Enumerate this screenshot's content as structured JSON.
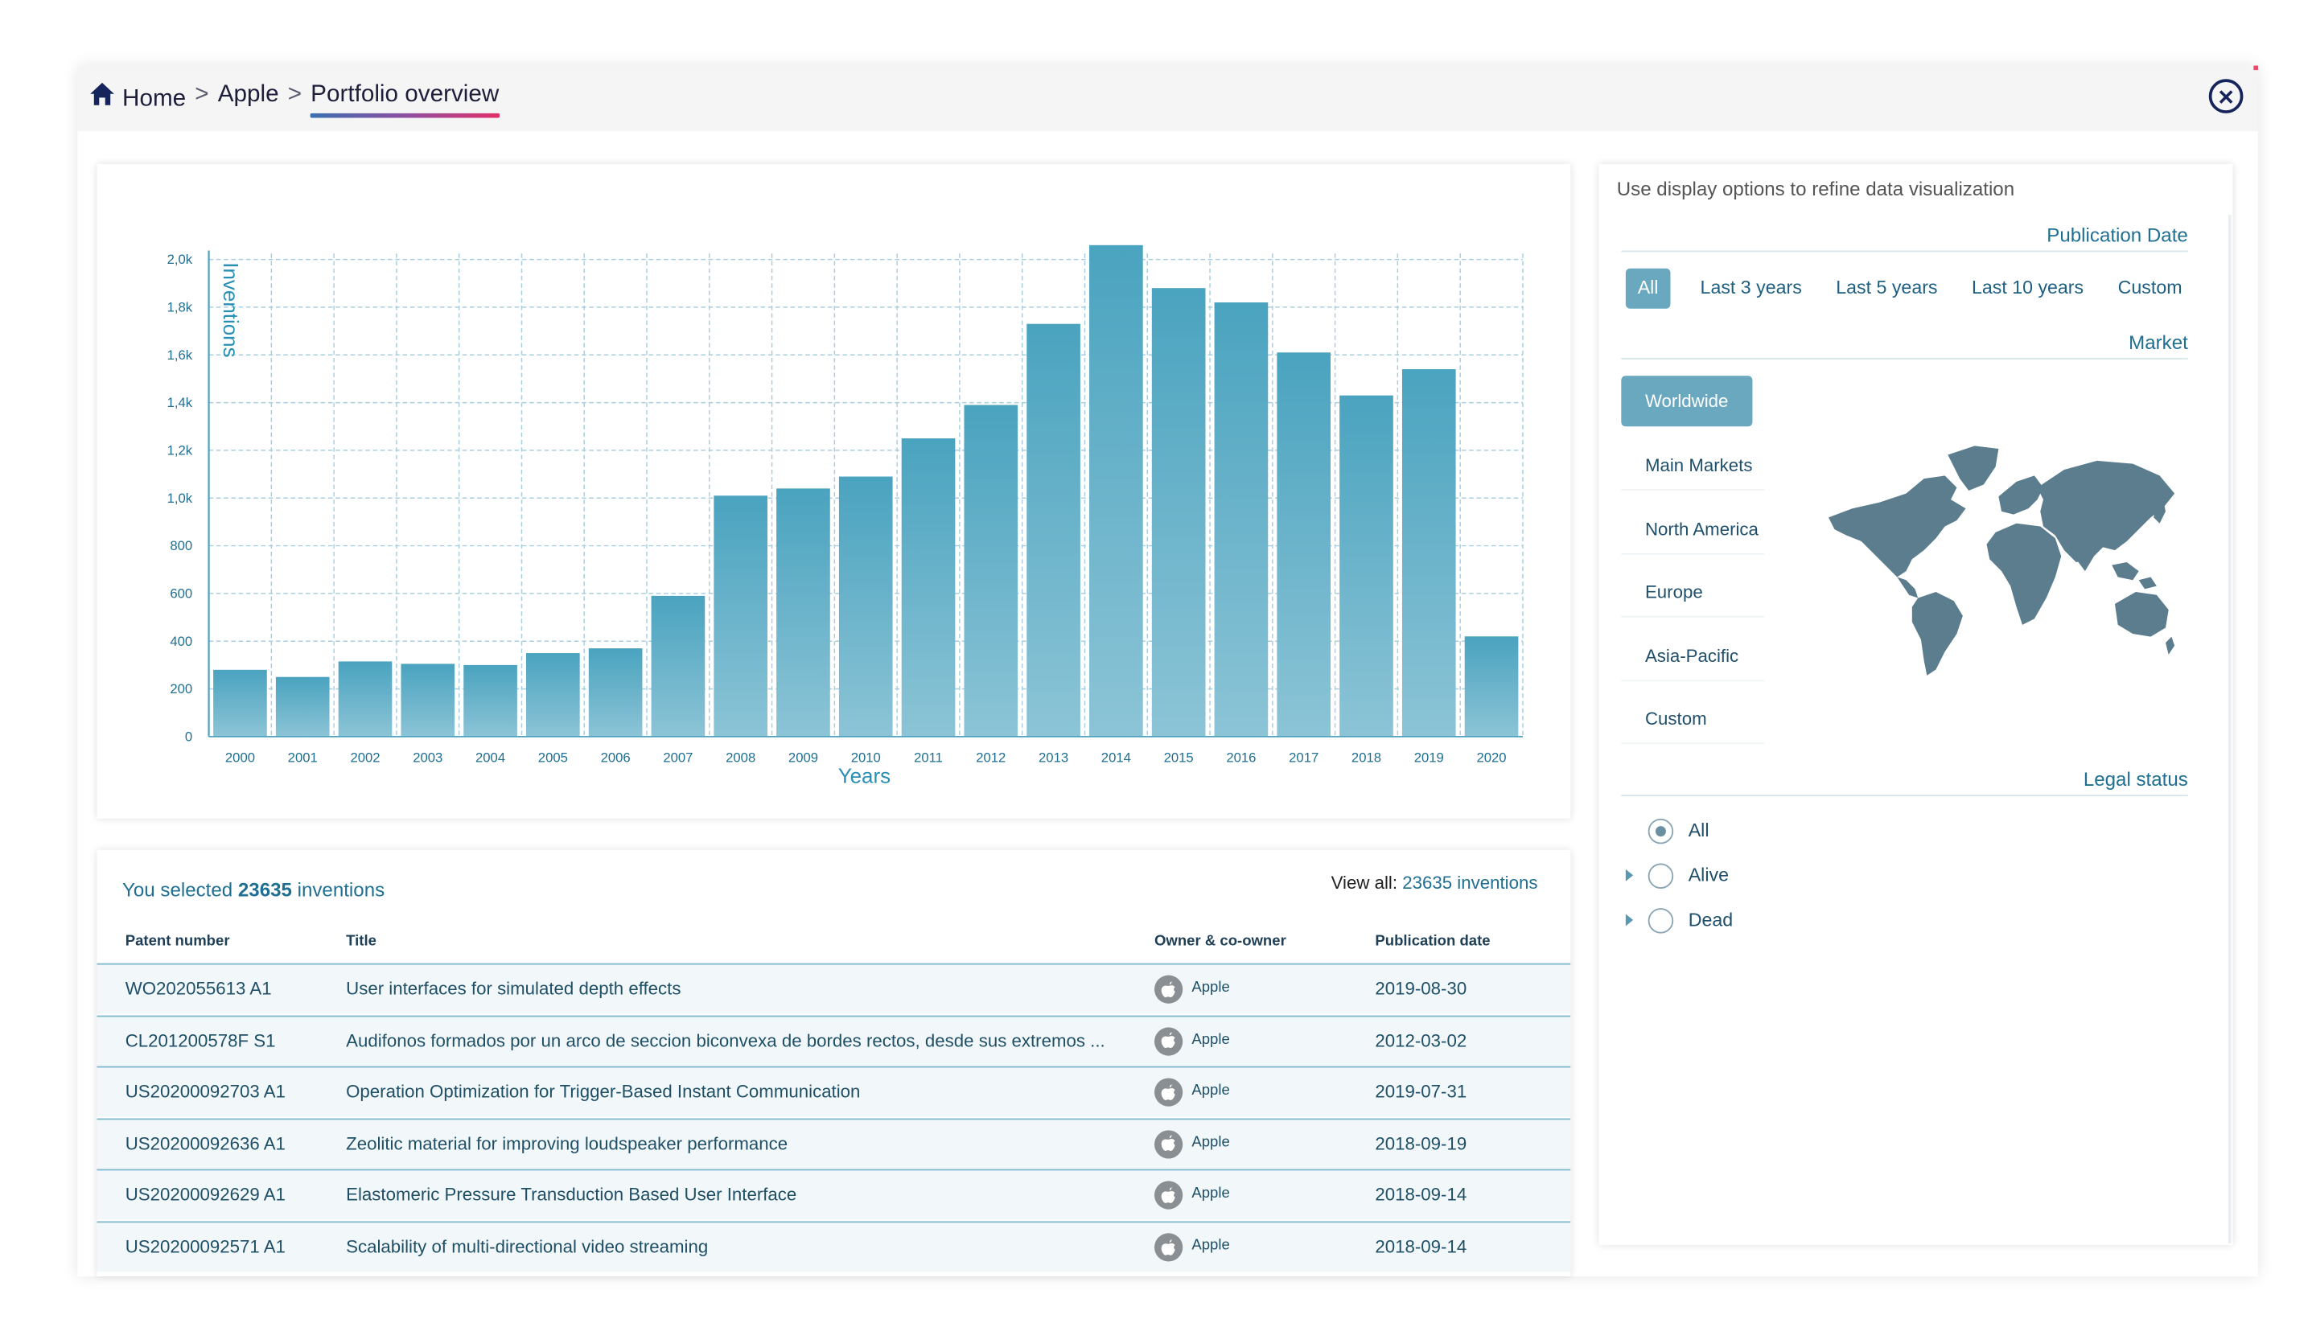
{
  "breadcrumb": {
    "home": "Home",
    "company": "Apple",
    "current": "Portfolio overview",
    "separator": ">"
  },
  "close_icon": "close-icon",
  "chart_data": {
    "type": "bar",
    "title": "",
    "xlabel": "Years",
    "ylabel": "Inventions",
    "categories": [
      "2000",
      "2001",
      "2002",
      "2003",
      "2004",
      "2005",
      "2006",
      "2007",
      "2008",
      "2009",
      "2010",
      "2011",
      "2012",
      "2013",
      "2014",
      "2015",
      "2016",
      "2017",
      "2018",
      "2019",
      "2020"
    ],
    "values": [
      280,
      250,
      315,
      305,
      300,
      350,
      370,
      590,
      1010,
      1040,
      1090,
      1250,
      1390,
      1730,
      2060,
      1880,
      1820,
      1610,
      1430,
      1540,
      420
    ],
    "yticks": [
      "0",
      "200",
      "400",
      "600",
      "800",
      "1,0k",
      "1,2k",
      "1,4k",
      "1,6k",
      "1,8k",
      "2,0k"
    ],
    "ylim": [
      0,
      2000
    ],
    "grid": true,
    "bar_color_top": "#4aa3bf",
    "bar_color_bottom": "#8cc4d6"
  },
  "table": {
    "summary_prefix": "You selected ",
    "summary_count": "23635",
    "summary_suffix": " inventions",
    "view_all_prefix": "View all: ",
    "view_all_value": "23635 inventions",
    "columns": [
      "Patent number",
      "Title",
      "Owner & co-owner",
      "Publication date"
    ],
    "rows": [
      {
        "patent": "WO202055613 A1",
        "title": "User interfaces for simulated depth effects",
        "owner": "Apple",
        "date": "2019-08-30"
      },
      {
        "patent": "CL201200578F S1",
        "title": "Audifonos formados por un arco de seccion biconvexa de bordes rectos, desde sus extremos ...",
        "owner": "Apple",
        "date": "2012-03-02"
      },
      {
        "patent": "US20200092703 A1",
        "title": "Operation Optimization for Trigger-Based Instant Communication",
        "owner": "Apple",
        "date": "2019-07-31"
      },
      {
        "patent": "US20200092636 A1",
        "title": "Zeolitic material for improving loudspeaker performance",
        "owner": "Apple",
        "date": "2018-09-19"
      },
      {
        "patent": "US20200092629 A1",
        "title": "Elastomeric Pressure Transduction Based User Interface",
        "owner": "Apple",
        "date": "2018-09-14"
      },
      {
        "patent": "US20200092571 A1",
        "title": "Scalability of multi-directional video streaming",
        "owner": "Apple",
        "date": "2018-09-14"
      }
    ]
  },
  "options": {
    "header": "Use display options to refine data visualization",
    "publication_date": {
      "title": "Publication Date",
      "pills": [
        "All",
        "Last 3 years",
        "Last 5 years",
        "Last 10 years",
        "Custom"
      ],
      "selected": "All"
    },
    "market": {
      "title": "Market",
      "items": [
        "Worldwide",
        "Main Markets",
        "North America",
        "Europe",
        "Asia-Pacific",
        "Custom"
      ],
      "selected": "Worldwide",
      "map_icon": "world-map-icon",
      "map_color": "#5b7d8e"
    },
    "legal_status": {
      "title": "Legal status",
      "items": [
        "All",
        "Alive",
        "Dead"
      ],
      "selected": "All"
    }
  }
}
